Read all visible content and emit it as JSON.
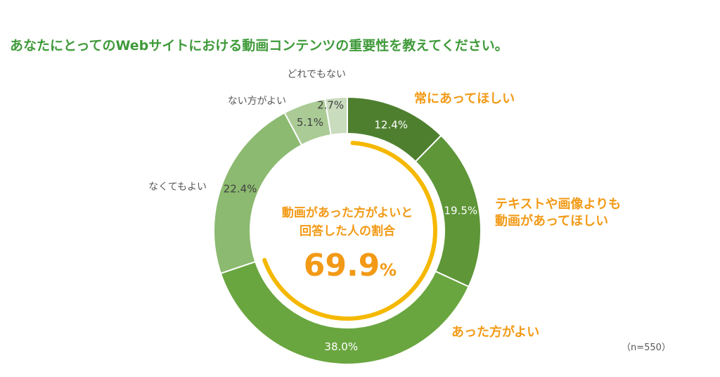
{
  "title": "あなたにとってのWebサイトにおける動画コンテンツの重要性を教えてください。",
  "sample_note": "（n=550）",
  "chart_data": {
    "type": "pie",
    "subtype": "donut",
    "title": "あなたにとってのWebサイトにおける動画コンテンツの重要性を教えてください。",
    "categories": [
      "常にあってほしい",
      "テキストや画像よりも動画があってほしい",
      "あった方がよい",
      "なくてもよい",
      "ない方がよい",
      "どれでもない"
    ],
    "values": [
      12.4,
      19.5,
      38.0,
      22.4,
      5.1,
      2.7
    ],
    "value_labels": [
      "12.4%",
      "19.5%",
      "38.0%",
      "22.4%",
      "5.1%",
      "2.7%"
    ],
    "label_lines": [
      [
        "常にあってほしい"
      ],
      [
        "テキストや画像よりも",
        "動画があってほしい"
      ],
      [
        "あった方がよい"
      ],
      [
        "なくてもよい"
      ],
      [
        "ない方がよい"
      ],
      [
        "どれでもない"
      ]
    ],
    "slice_colors": [
      "#4e7f2f",
      "#5e9638",
      "#6aa640",
      "#8cba70",
      "#aacb95",
      "#c9dcbd"
    ],
    "label_colors": [
      "#f29a16",
      "#f29a16",
      "#f29a16",
      "#595959",
      "#595959",
      "#595959"
    ],
    "value_label_colors": [
      "#ffffff",
      "#ffffff",
      "#ffffff",
      "#404040",
      "#404040",
      "#404040"
    ],
    "unit": "%",
    "center_label_lines": [
      "動画があった方がよいと",
      "回答した人の割合"
    ],
    "center_value": "69.9",
    "center_unit": "%",
    "highlight_value": 69.9,
    "highlight_color": "#f5b800",
    "center_text_color": "#f29a16",
    "legend": "none"
  }
}
